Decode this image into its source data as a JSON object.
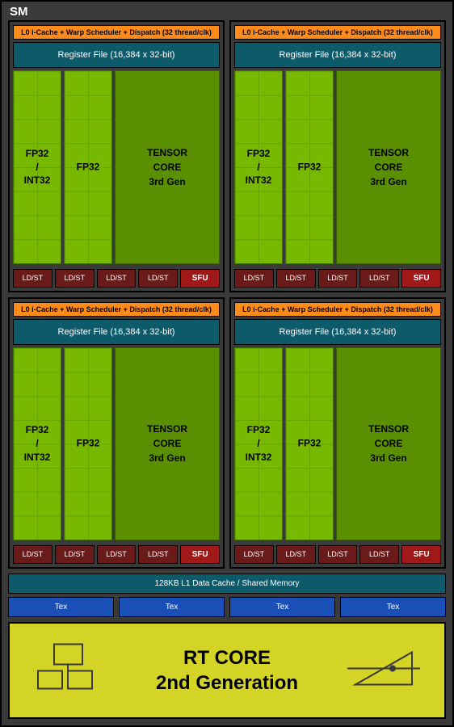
{
  "title": "SM",
  "block": {
    "l0_label": "L0 i-Cache + Warp Scheduler + Dispatch (32 thread/clk)",
    "regfile_label": "Register File (16,384 x 32-bit)",
    "fp32int32_label": "FP32\n/\nINT32",
    "fp32_label": "FP32",
    "tensor_label": "TENSOR\nCORE\n3rd Gen",
    "ldst_label": "LD/ST",
    "ldst_count": 4,
    "sfu_label": "SFU"
  },
  "l1_label": "128KB L1 Data Cache / Shared Memory",
  "tex_label": "Tex",
  "tex_count": 4,
  "rt_core": {
    "line1": "RT CORE",
    "line2": "2nd Generation"
  },
  "colors": {
    "container_bg": "#3a3a3a",
    "l0_bg": "#ff8c1a",
    "regfile_bg": "#0d5a6b",
    "fp_bg": "#76b900",
    "tensor_bg": "#5a8f00",
    "ldst_bg": "#6b1a1a",
    "sfu_bg": "#a01818",
    "tex_bg": "#1a4fb8",
    "rt_bg": "#d4d426"
  }
}
